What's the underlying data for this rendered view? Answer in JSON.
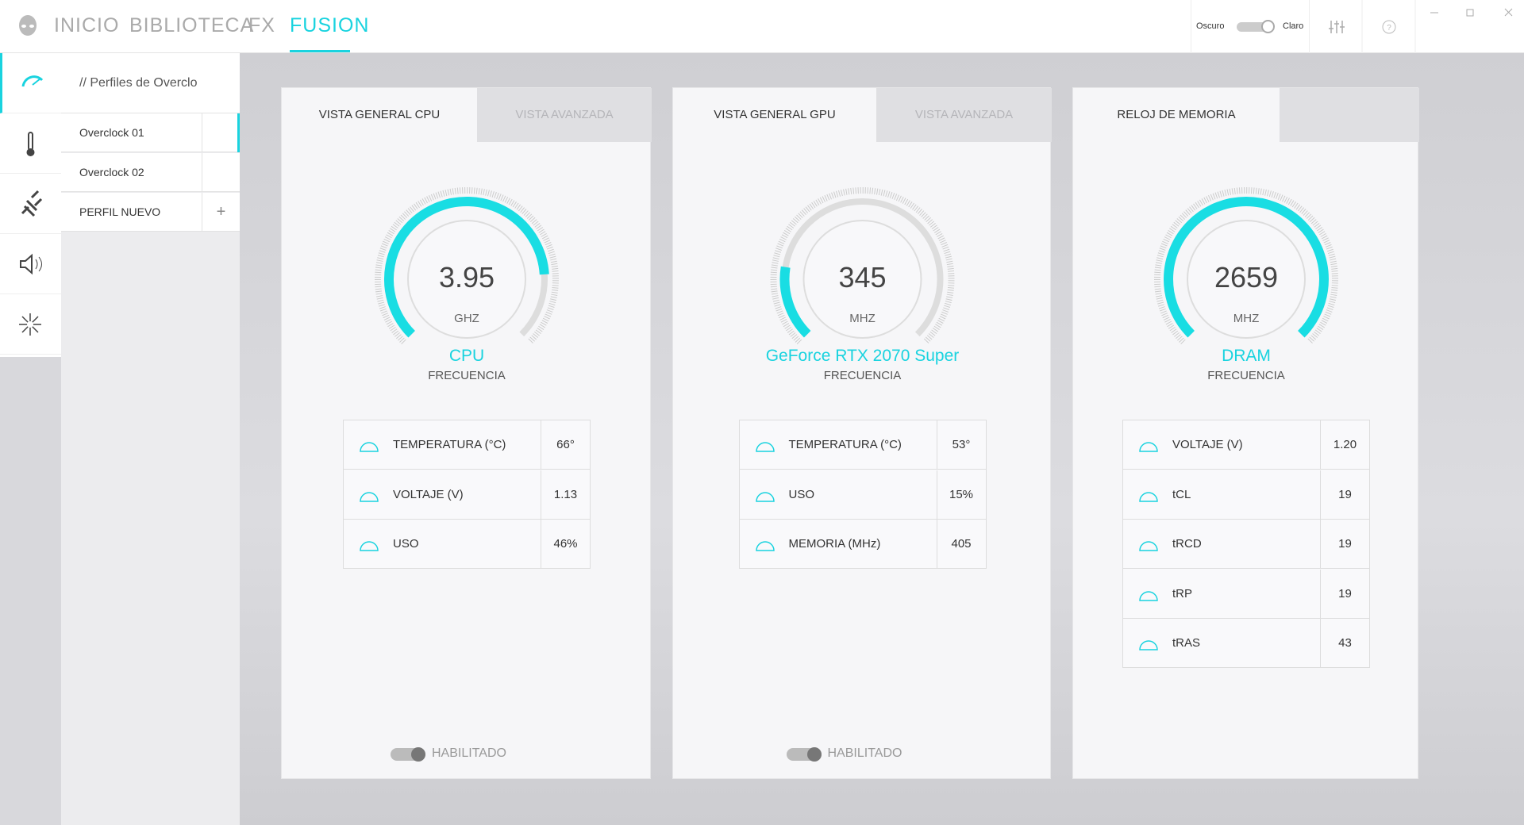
{
  "nav": {
    "tabs": [
      "INICIO",
      "BIBLIOTECA",
      "FX",
      "FUSION"
    ]
  },
  "theme_toggle": {
    "left": "Oscuro",
    "right": "Claro"
  },
  "profiles": {
    "title": "// Perfiles de Overclo",
    "items": [
      "Overclock 01",
      "Overclock 02",
      "PERFIL NUEVO"
    ]
  },
  "panels": [
    {
      "tabs": [
        "VISTA GENERAL CPU",
        "VISTA AVANZADA"
      ],
      "gauge": {
        "value": "3.95",
        "unit": "GHZ",
        "name": "CPU",
        "label": "FRECUENCIA"
      },
      "rows": [
        [
          "TEMPERATURA (°C)",
          "66°"
        ],
        [
          "VOLTAJE (V)",
          "1.13"
        ],
        [
          "USO",
          "46%"
        ]
      ],
      "toggle": "HABILITADO"
    },
    {
      "tabs": [
        "VISTA GENERAL GPU",
        "VISTA AVANZADA"
      ],
      "gauge": {
        "value": "345",
        "unit": "MHZ",
        "name": "GeForce RTX 2070 Super",
        "label": "FRECUENCIA"
      },
      "rows": [
        [
          "TEMPERATURA (°C)",
          "53°"
        ],
        [
          "USO",
          "15%"
        ],
        [
          "MEMORIA (MHz)",
          "405"
        ]
      ],
      "toggle": "HABILITADO"
    },
    {
      "tabs": [
        "RELOJ DE MEMORIA"
      ],
      "gauge": {
        "value": "2659",
        "unit": "MHZ",
        "name": "DRAM",
        "label": "FRECUENCIA"
      },
      "rows": [
        [
          "VOLTAJE (V)",
          "1.20"
        ],
        [
          "tCL",
          "19"
        ],
        [
          "tRCD",
          "19"
        ],
        [
          "tRP",
          "19"
        ],
        [
          "tRAS",
          "43"
        ]
      ]
    }
  ]
}
